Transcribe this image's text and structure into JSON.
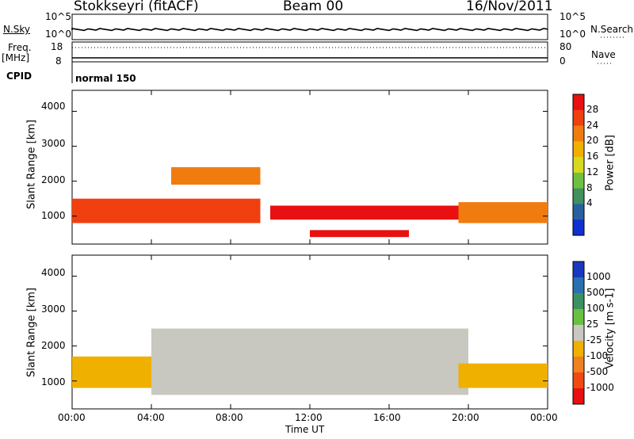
{
  "header": {
    "station": "Stokkseyri (fitACF)",
    "beam": "Beam 00",
    "date": "16/Nov/2011"
  },
  "summary": {
    "nsky_label": "N.Sky",
    "nsky_tick_top": "10^5",
    "nsky_tick_bottom": "10^0",
    "nsearch_label": "N.Search",
    "nsearch_tick_top": "10^5",
    "nsearch_tick_bottom": "10^0",
    "freq_label": "Freq.",
    "freq_unit": "[MHz]",
    "freq_tick_top": "18",
    "freq_tick_bottom": "8",
    "nave_label": "Nave",
    "nave_tick_top": "80",
    "nave_tick_bottom": "0",
    "cpid_label": "CPID",
    "cpid_value": "normal 150"
  },
  "axes": {
    "ylabel": "Slant Range [km]",
    "xlabel": "Time UT",
    "y_ticks": [
      "4000",
      "3000",
      "2000",
      "1000"
    ],
    "x_ticks": [
      "00:00",
      "04:00",
      "08:00",
      "12:00",
      "16:00",
      "20:00",
      "00:00"
    ]
  },
  "power_scale": {
    "label": "Power [dB]",
    "ticks": [
      "28",
      "24",
      "20",
      "16",
      "12",
      "8",
      "4"
    ],
    "colors": [
      "#e81010",
      "#f04010",
      "#f07c10",
      "#f0b000",
      "#d8d820",
      "#70c040",
      "#409060",
      "#2860a0",
      "#1030d0"
    ]
  },
  "velocity_scale": {
    "label": "Velocity [m s-1]",
    "ticks": [
      "1000",
      "500",
      "100",
      "25",
      "-25",
      "-100",
      "-500",
      "-1000"
    ],
    "colors": [
      "#1838c0",
      "#2a70b0",
      "#3c9060",
      "#6ac040",
      "#c8c8c0",
      "#f0b000",
      "#f08020",
      "#f04a10",
      "#e81010"
    ]
  },
  "chart_data": [
    {
      "type": "heatmap",
      "title": "Power",
      "xlabel": "Time UT",
      "ylabel": "Slant Range [km]",
      "xlim": [
        "00:00",
        "24:00"
      ],
      "ylim": [
        200,
        4600
      ],
      "zlabel": "Power [dB]",
      "zlim": [
        0,
        30
      ],
      "bands": [
        {
          "t_start": 0.0,
          "t_end": 9.5,
          "range_low": 800,
          "range_high": 1500,
          "power_db": 26
        },
        {
          "t_start": 5.0,
          "t_end": 9.5,
          "range_low": 1900,
          "range_high": 2400,
          "power_db": 22
        },
        {
          "t_start": 10.0,
          "t_end": 19.5,
          "range_low": 900,
          "range_high": 1300,
          "power_db": 30
        },
        {
          "t_start": 12.0,
          "t_end": 17.0,
          "range_low": 400,
          "range_high": 600,
          "power_db": 30
        },
        {
          "t_start": 19.5,
          "t_end": 24.0,
          "range_low": 800,
          "range_high": 1400,
          "power_db": 22
        }
      ]
    },
    {
      "type": "heatmap",
      "title": "Velocity",
      "xlabel": "Time UT",
      "ylabel": "Slant Range [km]",
      "xlim": [
        "00:00",
        "24:00"
      ],
      "ylim": [
        200,
        4600
      ],
      "zlabel": "Velocity [m s-1]",
      "zlim": [
        -1000,
        1000
      ],
      "bands": [
        {
          "t_start": 0.0,
          "t_end": 9.5,
          "range_low": 800,
          "range_high": 1700,
          "velocity": -300
        },
        {
          "t_start": 4.0,
          "t_end": 20.0,
          "range_low": 600,
          "range_high": 2500,
          "velocity": 0
        },
        {
          "t_start": 19.5,
          "t_end": 24.0,
          "range_low": 800,
          "range_high": 1500,
          "velocity": -300
        }
      ]
    }
  ]
}
